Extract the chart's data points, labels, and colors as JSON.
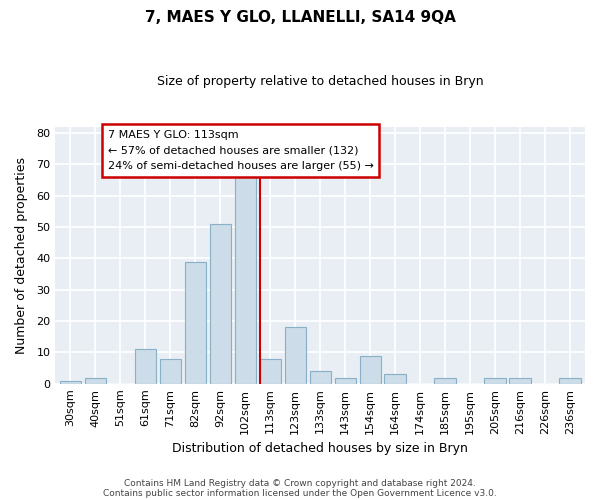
{
  "title": "7, MAES Y GLO, LLANELLI, SA14 9QA",
  "subtitle": "Size of property relative to detached houses in Bryn",
  "xlabel": "Distribution of detached houses by size in Bryn",
  "ylabel": "Number of detached properties",
  "footer_lines": [
    "Contains HM Land Registry data © Crown copyright and database right 2024.",
    "Contains public sector information licensed under the Open Government Licence v3.0."
  ],
  "bins": [
    "30sqm",
    "40sqm",
    "51sqm",
    "61sqm",
    "71sqm",
    "82sqm",
    "92sqm",
    "102sqm",
    "113sqm",
    "123sqm",
    "133sqm",
    "143sqm",
    "154sqm",
    "164sqm",
    "174sqm",
    "185sqm",
    "195sqm",
    "205sqm",
    "216sqm",
    "226sqm",
    "236sqm"
  ],
  "values": [
    1,
    2,
    0,
    11,
    8,
    39,
    51,
    66,
    8,
    18,
    4,
    2,
    9,
    3,
    0,
    2,
    0,
    2,
    2,
    0,
    2
  ],
  "bar_color": "#ccdce8",
  "bar_edge_color": "#8ab0c8",
  "marker_index": 8,
  "marker_color": "#cc0000",
  "annotation_title": "7 MAES Y GLO: 113sqm",
  "annotation_line1": "← 57% of detached houses are smaller (132)",
  "annotation_line2": "24% of semi-detached houses are larger (55) →",
  "annotation_box_color": "#ffffff",
  "annotation_box_edge": "#cc0000",
  "ylim": [
    0,
    82
  ],
  "yticks": [
    0,
    10,
    20,
    30,
    40,
    50,
    60,
    70,
    80
  ],
  "background_color": "#ffffff",
  "plot_bg_color": "#e8eef4"
}
